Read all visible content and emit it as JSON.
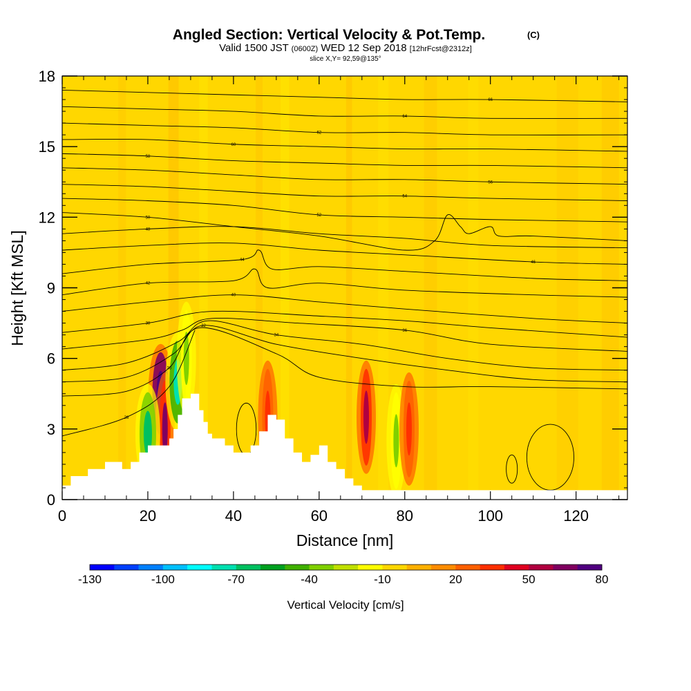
{
  "title": {
    "main": "Angled Section: Vertical Velocity & Pot.Temp.",
    "main_unit": "(C)",
    "valid_prefix": "Valid 1500 JST",
    "valid_utc": "(0600Z)",
    "valid_date": "WED 12 Sep 2018",
    "forecast": "[12hrFcst@2312z]",
    "slice": "slice X,Y= 92,59@135°"
  },
  "chart_data": {
    "type": "heatmap",
    "xlabel": "Distance [nm]",
    "ylabel": "Height [Kft MSL]",
    "xlim": [
      0,
      132
    ],
    "ylim": [
      0,
      18
    ],
    "x_ticks": [
      0,
      20,
      40,
      60,
      80,
      100,
      120
    ],
    "y_ticks": [
      0,
      3,
      6,
      9,
      12,
      15,
      18
    ],
    "background_field": "#ffd700",
    "colorbar": {
      "label": "Vertical Velocity [cm/s]",
      "tick_labels": [
        "-130",
        "-100",
        "-70",
        "-40",
        "-10",
        "20",
        "50",
        "80"
      ],
      "colors": [
        "#0000ff",
        "#0040ff",
        "#0080ff",
        "#00c0ff",
        "#00ffff",
        "#00e0b0",
        "#00c060",
        "#00a020",
        "#40b000",
        "#80d000",
        "#c0e000",
        "#ffff00",
        "#ffd700",
        "#ffb000",
        "#ff8c00",
        "#ff6000",
        "#ff3000",
        "#e00020",
        "#b00040",
        "#800060",
        "#500080"
      ]
    },
    "terrain_profile": {
      "x_nm": [
        0,
        2,
        6,
        10,
        14,
        16,
        18,
        20,
        22,
        24,
        25,
        26,
        27,
        28,
        30,
        32,
        33,
        34,
        35,
        36,
        38,
        40,
        42,
        44,
        46,
        48,
        50,
        52,
        54,
        56,
        58,
        60,
        62,
        64,
        66,
        68,
        70,
        132
      ],
      "height_kft": [
        0.6,
        1.0,
        1.3,
        1.6,
        1.3,
        1.6,
        2.0,
        2.3,
        2.3,
        2.3,
        2.6,
        3.0,
        3.6,
        4.3,
        4.5,
        3.8,
        3.3,
        2.8,
        2.6,
        2.6,
        2.3,
        2.0,
        2.0,
        2.3,
        2.9,
        3.6,
        3.4,
        2.6,
        2.0,
        1.6,
        1.9,
        2.3,
        1.6,
        1.3,
        0.9,
        0.6,
        0.4,
        0.4
      ]
    },
    "vertical_velocity_features": [
      {
        "x_nm": 23,
        "z_kft": 4.5,
        "velocity_cms": 95
      },
      {
        "x_nm": 24,
        "z_kft": 3.0,
        "velocity_cms": 55
      },
      {
        "x_nm": 20,
        "z_kft": 2.8,
        "velocity_cms": -70
      },
      {
        "x_nm": 27,
        "z_kft": 5.0,
        "velocity_cms": -80
      },
      {
        "x_nm": 29,
        "z_kft": 6.0,
        "velocity_cms": -40
      },
      {
        "x_nm": 71,
        "z_kft": 3.5,
        "velocity_cms": 45
      },
      {
        "x_nm": 78,
        "z_kft": 2.5,
        "velocity_cms": -40
      },
      {
        "x_nm": 81,
        "z_kft": 3.0,
        "velocity_cms": 30
      },
      {
        "x_nm": 48,
        "z_kft": 3.5,
        "velocity_cms": 25
      }
    ],
    "potential_temperature_contours": [
      {
        "label": "28",
        "points": [
          [
            0,
            2.7
          ],
          [
            15,
            3.5
          ],
          [
            25,
            4.8
          ],
          [
            31,
            7.2
          ]
        ]
      },
      {
        "label": "30",
        "points": [
          [
            0,
            4.4
          ],
          [
            15,
            4.6
          ],
          [
            25,
            5.6
          ],
          [
            32,
            7.3
          ],
          [
            50,
            6.2
          ],
          [
            60,
            5.2
          ],
          [
            80,
            4.8
          ],
          [
            100,
            4.8
          ],
          [
            132,
            4.7
          ]
        ]
      },
      {
        "label": "32",
        "points": [
          [
            0,
            5.0
          ],
          [
            15,
            5.2
          ],
          [
            26,
            6.2
          ],
          [
            33,
            7.4
          ],
          [
            50,
            6.6
          ],
          [
            70,
            6.0
          ],
          [
            90,
            5.5
          ],
          [
            110,
            5.1
          ],
          [
            132,
            5.0
          ]
        ]
      },
      {
        "label": "34",
        "points": [
          [
            0,
            5.5
          ],
          [
            15,
            5.8
          ],
          [
            27,
            6.7
          ],
          [
            34,
            7.6
          ],
          [
            50,
            7.0
          ],
          [
            70,
            6.6
          ],
          [
            90,
            6.0
          ],
          [
            110,
            5.6
          ],
          [
            132,
            5.5
          ]
        ]
      },
      {
        "label": "36",
        "points": [
          [
            0,
            6.4
          ],
          [
            20,
            6.8
          ],
          [
            28,
            7.2
          ],
          [
            35,
            7.7
          ],
          [
            55,
            7.5
          ],
          [
            80,
            7.2
          ],
          [
            100,
            6.6
          ],
          [
            132,
            6.3
          ]
        ]
      },
      {
        "label": "38",
        "points": [
          [
            0,
            7.1
          ],
          [
            20,
            7.5
          ],
          [
            35,
            8.0
          ],
          [
            60,
            7.8
          ],
          [
            80,
            7.6
          ],
          [
            100,
            7.3
          ],
          [
            132,
            6.9
          ]
        ]
      },
      {
        "label": "40",
        "points": [
          [
            0,
            8.0
          ],
          [
            20,
            8.4
          ],
          [
            40,
            8.7
          ],
          [
            60,
            8.4
          ],
          [
            80,
            8.1
          ],
          [
            110,
            7.7
          ],
          [
            132,
            7.5
          ]
        ]
      },
      {
        "label": "42",
        "points": [
          [
            0,
            8.7
          ],
          [
            20,
            9.2
          ],
          [
            40,
            9.3
          ],
          [
            45,
            9.8
          ],
          [
            48,
            9.0
          ],
          [
            60,
            9.2
          ],
          [
            80,
            8.9
          ],
          [
            110,
            8.7
          ],
          [
            132,
            8.6
          ]
        ]
      },
      {
        "label": "44",
        "points": [
          [
            0,
            9.6
          ],
          [
            20,
            10.0
          ],
          [
            42,
            10.2
          ],
          [
            46,
            10.6
          ],
          [
            49,
            9.8
          ],
          [
            60,
            9.9
          ],
          [
            80,
            9.7
          ],
          [
            110,
            9.4
          ],
          [
            132,
            9.3
          ]
        ]
      },
      {
        "label": "46",
        "points": [
          [
            0,
            10.6
          ],
          [
            20,
            10.8
          ],
          [
            40,
            10.9
          ],
          [
            60,
            10.6
          ],
          [
            80,
            10.4
          ],
          [
            110,
            10.1
          ],
          [
            132,
            10.0
          ]
        ]
      },
      {
        "label": "48",
        "points": [
          [
            0,
            11.3
          ],
          [
            20,
            11.5
          ],
          [
            40,
            11.6
          ],
          [
            60,
            11.3
          ],
          [
            80,
            11.1
          ],
          [
            100,
            10.8
          ],
          [
            132,
            10.7
          ]
        ]
      },
      {
        "label": "50",
        "points": [
          [
            0,
            12.2
          ],
          [
            20,
            12.0
          ],
          [
            40,
            11.6
          ],
          [
            60,
            11.2
          ],
          [
            80,
            10.6
          ],
          [
            87,
            11.0
          ],
          [
            90,
            12.1
          ],
          [
            93,
            11.6
          ],
          [
            95,
            11.3
          ],
          [
            100,
            11.6
          ],
          [
            102,
            11.2
          ],
          [
            110,
            11.2
          ],
          [
            132,
            11.0
          ]
        ]
      },
      {
        "label": "52",
        "points": [
          [
            0,
            12.8
          ],
          [
            20,
            12.7
          ],
          [
            40,
            12.5
          ],
          [
            60,
            12.1
          ],
          [
            80,
            12.0
          ],
          [
            100,
            11.9
          ],
          [
            132,
            11.8
          ]
        ]
      },
      {
        "label": "54",
        "points": [
          [
            0,
            13.4
          ],
          [
            20,
            13.3
          ],
          [
            40,
            13.1
          ],
          [
            60,
            12.9
          ],
          [
            80,
            12.9
          ],
          [
            100,
            12.8
          ],
          [
            132,
            12.7
          ]
        ]
      },
      {
        "label": "56",
        "points": [
          [
            0,
            14.1
          ],
          [
            20,
            14.0
          ],
          [
            40,
            13.8
          ],
          [
            60,
            13.6
          ],
          [
            80,
            13.6
          ],
          [
            100,
            13.5
          ],
          [
            132,
            13.4
          ]
        ]
      },
      {
        "label": "58",
        "points": [
          [
            0,
            14.7
          ],
          [
            20,
            14.6
          ],
          [
            40,
            14.4
          ],
          [
            60,
            14.3
          ],
          [
            80,
            14.2
          ],
          [
            100,
            14.2
          ],
          [
            132,
            14.1
          ]
        ]
      },
      {
        "label": "60",
        "points": [
          [
            0,
            15.3
          ],
          [
            20,
            15.3
          ],
          [
            40,
            15.1
          ],
          [
            60,
            15.0
          ],
          [
            80,
            14.9
          ],
          [
            100,
            14.9
          ],
          [
            132,
            14.8
          ]
        ]
      },
      {
        "label": "62",
        "points": [
          [
            0,
            16.0
          ],
          [
            20,
            15.9
          ],
          [
            40,
            15.8
          ],
          [
            60,
            15.6
          ],
          [
            80,
            15.6
          ],
          [
            100,
            15.5
          ],
          [
            132,
            15.5
          ]
        ]
      },
      {
        "label": "64",
        "points": [
          [
            0,
            16.7
          ],
          [
            20,
            16.6
          ],
          [
            40,
            16.5
          ],
          [
            60,
            16.3
          ],
          [
            80,
            16.3
          ],
          [
            100,
            16.2
          ],
          [
            132,
            16.2
          ]
        ]
      },
      {
        "label": "66",
        "points": [
          [
            0,
            17.4
          ],
          [
            20,
            17.3
          ],
          [
            40,
            17.2
          ],
          [
            60,
            17.1
          ],
          [
            80,
            17.0
          ],
          [
            100,
            17.0
          ],
          [
            132,
            16.9
          ]
        ]
      }
    ],
    "closed_contours": [
      {
        "cx": 114,
        "cz": 1.8,
        "rx": 5.5,
        "rz": 1.4
      },
      {
        "cx": 105,
        "cz": 1.3,
        "rx": 1.3,
        "rz": 0.6
      },
      {
        "cx": 43,
        "cz": 3.0,
        "rx": 2.3,
        "rz": 1.1
      }
    ]
  }
}
